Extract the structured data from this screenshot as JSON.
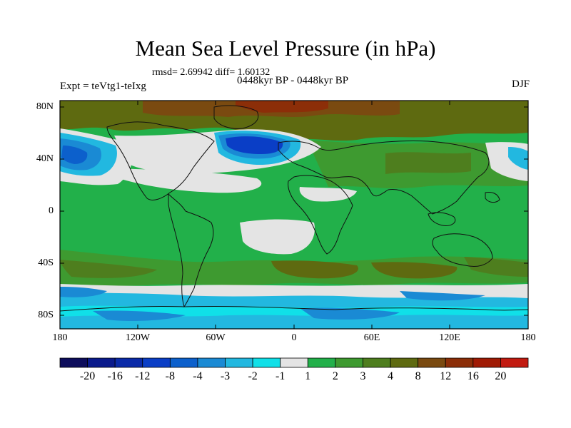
{
  "title": "Mean Sea Level Pressure (in hPa)",
  "stats": "rmsd= 2.69942  diff= 1.60132",
  "expt": "Expt = teVtg1-teIxg",
  "period": "0448kyr BP - 0448kyr BP",
  "season": "DJF",
  "y_labels": [
    "80N",
    "40N",
    "0",
    "40S",
    "80S"
  ],
  "x_labels": [
    "180",
    "120W",
    "60W",
    "0",
    "60E",
    "120E",
    "180"
  ],
  "colorbar": {
    "labels": [
      "-20",
      "-16",
      "-12",
      "-8",
      "-4",
      "-3",
      "-2",
      "-1",
      "1",
      "2",
      "3",
      "4",
      "8",
      "12",
      "16",
      "20"
    ],
    "colors": [
      "#0d0d5c",
      "#0a1a8c",
      "#0a2aa8",
      "#0a3ec6",
      "#0c60cc",
      "#1a8ad4",
      "#22b8e0",
      "#10e0e8",
      "#e4e4e4",
      "#22b04a",
      "#3e9a30",
      "#4e7e1e",
      "#5e6a10",
      "#7a4a10",
      "#8c2e08",
      "#a01a04",
      "#c21a10"
    ]
  }
}
